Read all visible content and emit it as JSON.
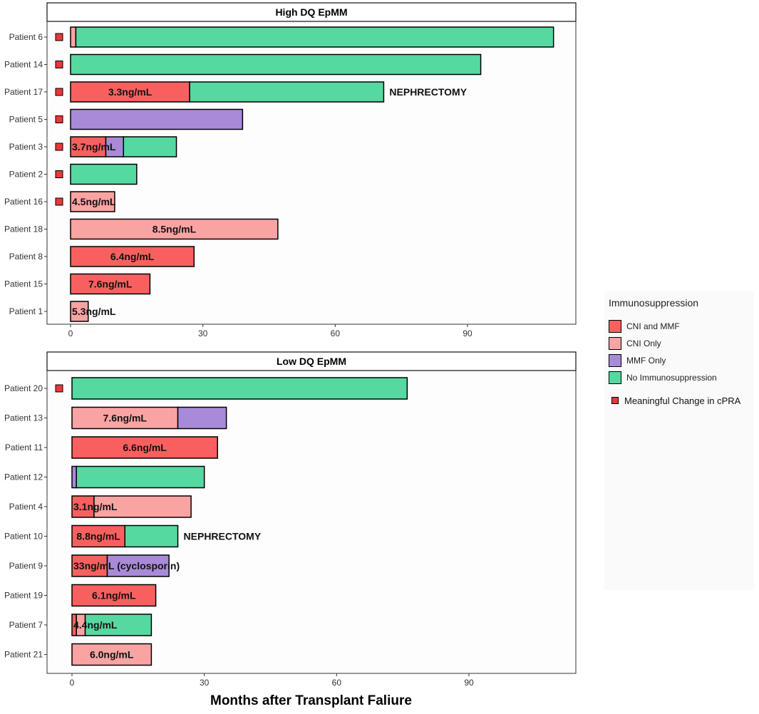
{
  "chart_data": [
    {
      "type": "bar",
      "orientation": "horizontal",
      "stacked": true,
      "title": "High DQ EpMM",
      "xlabel": "Months after Transplant Faliure",
      "xlim": [
        -3,
        112
      ],
      "xticks": [
        0,
        30,
        60,
        90
      ],
      "rows": [
        {
          "patient": "Patient 6",
          "cpra_change": true,
          "annotation": "",
          "segments": [
            {
              "type": "CNI Only",
              "start": 0,
              "end": 1.2
            },
            {
              "type": "No Immunosuppression",
              "start": 1.2,
              "end": 109.5
            }
          ]
        },
        {
          "patient": "Patient 14",
          "cpra_change": true,
          "annotation": "",
          "segments": [
            {
              "type": "No Immunosuppression",
              "start": 0,
              "end": 93
            }
          ]
        },
        {
          "patient": "Patient 17",
          "cpra_change": true,
          "label": "3.3ng/mL",
          "annotation": "NEPHRECTOMY",
          "segments": [
            {
              "type": "CNI and MMF",
              "start": 0,
              "end": 27
            },
            {
              "type": "No Immunosuppression",
              "start": 27,
              "end": 71
            }
          ]
        },
        {
          "patient": "Patient 5",
          "cpra_change": true,
          "annotation": "",
          "segments": [
            {
              "type": "MMF Only",
              "start": 0,
              "end": 39
            }
          ]
        },
        {
          "patient": "Patient 3",
          "cpra_change": true,
          "label": "3.7ng/mL",
          "annotation": "",
          "segments": [
            {
              "type": "CNI and MMF",
              "start": 0,
              "end": 8
            },
            {
              "type": "MMF Only",
              "start": 8,
              "end": 12
            },
            {
              "type": "No Immunosuppression",
              "start": 12,
              "end": 24
            }
          ]
        },
        {
          "patient": "Patient 2",
          "cpra_change": true,
          "annotation": "",
          "segments": [
            {
              "type": "No Immunosuppression",
              "start": 0,
              "end": 15
            }
          ]
        },
        {
          "patient": "Patient 16",
          "cpra_change": true,
          "label": "4.5ng/mL",
          "annotation": "",
          "segments": [
            {
              "type": "CNI Only",
              "start": 0,
              "end": 10
            }
          ]
        },
        {
          "patient": "Patient 18",
          "cpra_change": false,
          "label": "8.5ng/mL",
          "annotation": "",
          "segments": [
            {
              "type": "CNI Only",
              "start": 0,
              "end": 47
            }
          ]
        },
        {
          "patient": "Patient 8",
          "cpra_change": false,
          "label": "6.4ng/mL",
          "annotation": "",
          "segments": [
            {
              "type": "CNI and MMF",
              "start": 0,
              "end": 28
            }
          ]
        },
        {
          "patient": "Patient 15",
          "cpra_change": false,
          "label": "7.6ng/mL",
          "annotation": "",
          "segments": [
            {
              "type": "CNI and MMF",
              "start": 0,
              "end": 18
            }
          ]
        },
        {
          "patient": "Patient 1",
          "cpra_change": false,
          "label": "5.3ng/mL",
          "annotation": "",
          "segments": [
            {
              "type": "CNI Only",
              "start": 0,
              "end": 4
            }
          ]
        }
      ]
    },
    {
      "type": "bar",
      "orientation": "horizontal",
      "stacked": true,
      "title": "Low DQ EpMM",
      "xlabel": "Months after Transplant Faliure",
      "xlim": [
        -3,
        112
      ],
      "xticks": [
        0,
        30,
        60,
        90
      ],
      "rows": [
        {
          "patient": "Patient 20",
          "cpra_change": true,
          "annotation": "",
          "segments": [
            {
              "type": "No Immunosuppression",
              "start": 0,
              "end": 76
            }
          ]
        },
        {
          "patient": "Patient 13",
          "cpra_change": false,
          "label": "7.6ng/mL",
          "annotation": "",
          "segments": [
            {
              "type": "CNI Only",
              "start": 0,
              "end": 24
            },
            {
              "type": "MMF Only",
              "start": 24,
              "end": 35
            }
          ]
        },
        {
          "patient": "Patient 11",
          "cpra_change": false,
          "label": "6.6ng/mL",
          "annotation": "",
          "segments": [
            {
              "type": "CNI and MMF",
              "start": 0,
              "end": 33
            }
          ]
        },
        {
          "patient": "Patient 12",
          "cpra_change": false,
          "annotation": "",
          "segments": [
            {
              "type": "MMF Only",
              "start": 0,
              "end": 1
            },
            {
              "type": "No Immunosuppression",
              "start": 1,
              "end": 30
            }
          ]
        },
        {
          "patient": "Patient 4",
          "cpra_change": false,
          "label": "3.1ng/mL",
          "annotation": "",
          "segments": [
            {
              "type": "CNI and MMF",
              "start": 0,
              "end": 5
            },
            {
              "type": "CNI Only",
              "start": 5,
              "end": 27
            }
          ]
        },
        {
          "patient": "Patient 10",
          "cpra_change": false,
          "label": "8.8ng/mL",
          "annotation": "NEPHRECTOMY",
          "segments": [
            {
              "type": "CNI and MMF",
              "start": 0,
              "end": 12
            },
            {
              "type": "No Immunosuppression",
              "start": 12,
              "end": 24
            }
          ]
        },
        {
          "patient": "Patient 9",
          "cpra_change": false,
          "label": "33ng/mL (cyclosporin)",
          "annotation": "",
          "segments": [
            {
              "type": "CNI and MMF",
              "start": 0,
              "end": 8
            },
            {
              "type": "MMF Only",
              "start": 8,
              "end": 22
            }
          ]
        },
        {
          "patient": "Patient 19",
          "cpra_change": false,
          "label": "6.1ng/mL",
          "annotation": "",
          "segments": [
            {
              "type": "CNI and MMF",
              "start": 0,
              "end": 19
            }
          ]
        },
        {
          "patient": "Patient 7",
          "cpra_change": false,
          "label": "4.4ng/mL",
          "annotation": "",
          "segments": [
            {
              "type": "CNI and MMF",
              "start": 0,
              "end": 1
            },
            {
              "type": "CNI Only",
              "start": 1,
              "end": 3
            },
            {
              "type": "No Immunosuppression",
              "start": 3,
              "end": 18
            }
          ]
        },
        {
          "patient": "Patient 21",
          "cpra_change": false,
          "label": "6.0ng/mL",
          "annotation": "",
          "segments": [
            {
              "type": "CNI Only",
              "start": 0,
              "end": 18
            }
          ]
        }
      ]
    }
  ],
  "axis_title": "Months after Transplant Faliure",
  "legend": {
    "title": "Immunosuppression",
    "items": [
      {
        "label": "CNI and MMF",
        "color": "#f8605f"
      },
      {
        "label": "CNI Only",
        "color": "#f9a3a3"
      },
      {
        "label": "MMF Only",
        "color": "#a98ad8"
      },
      {
        "label": "No Immunosuppression",
        "color": "#56d8a1"
      }
    ],
    "marker_label": "Meaningful Change in cPRA",
    "marker_color": "#e8383a"
  }
}
